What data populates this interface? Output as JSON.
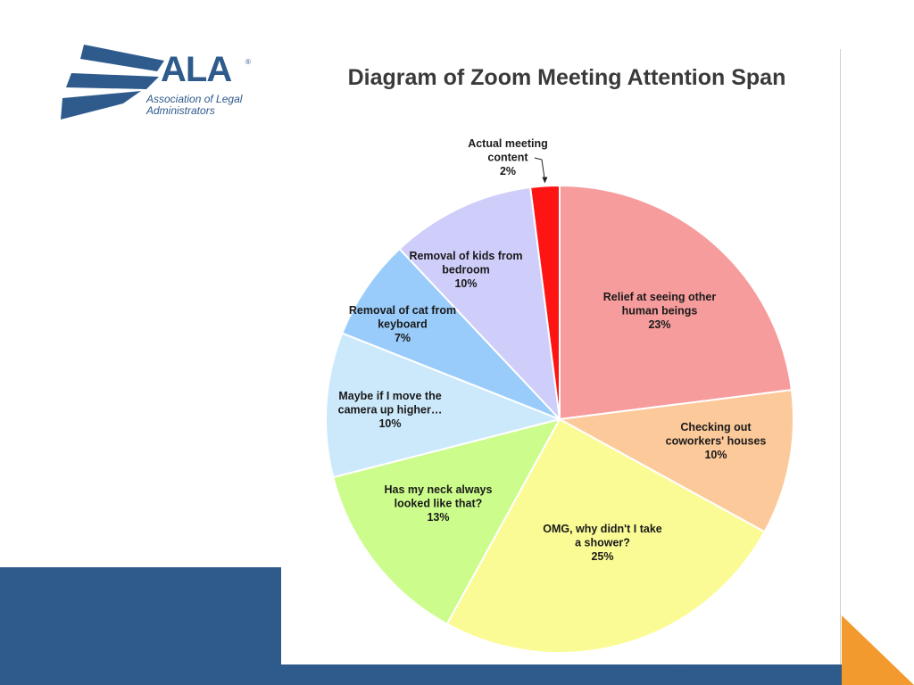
{
  "logo": {
    "mark": "ALA",
    "registered": "®",
    "subtitle_line1": "Association of Legal",
    "subtitle_line2": "Administrators"
  },
  "colors": {
    "brand_blue": "#2e5a8c",
    "accent_orange": "#f39a2e"
  },
  "chart_data": {
    "type": "pie",
    "title": "Diagram of Zoom Meeting Attention Span",
    "start_angle_deg": 0,
    "direction": "clockwise",
    "slices": [
      {
        "label_lines": [
          "Relief at seeing other",
          "human beings"
        ],
        "value_label": "23%",
        "value": 23,
        "color": "#f79c9c"
      },
      {
        "label_lines": [
          "Checking out",
          "coworkers' houses"
        ],
        "value_label": "10%",
        "value": 10,
        "color": "#fcc99a"
      },
      {
        "label_lines": [
          "OMG, why didn't I take",
          "a shower?"
        ],
        "value_label": "25%",
        "value": 25,
        "color": "#fbfb96"
      },
      {
        "label_lines": [
          "Has my neck always",
          "looked like that?"
        ],
        "value_label": "13%",
        "value": 13,
        "color": "#ccfc8c"
      },
      {
        "label_lines": [
          "Maybe if I move the",
          "camera up higher…"
        ],
        "value_label": "10%",
        "value": 10,
        "color": "#cce9fb"
      },
      {
        "label_lines": [
          "Removal of cat from",
          "keyboard"
        ],
        "value_label": "7%",
        "value": 7,
        "color": "#99ccfb"
      },
      {
        "label_lines": [
          "Removal of kids from",
          "bedroom"
        ],
        "value_label": "10%",
        "value": 10,
        "color": "#cfcdfa"
      },
      {
        "label_lines": [
          "Actual meeting",
          "content"
        ],
        "value_label": "2%",
        "value": 2,
        "color": "#ff1414",
        "callout": true
      }
    ]
  }
}
